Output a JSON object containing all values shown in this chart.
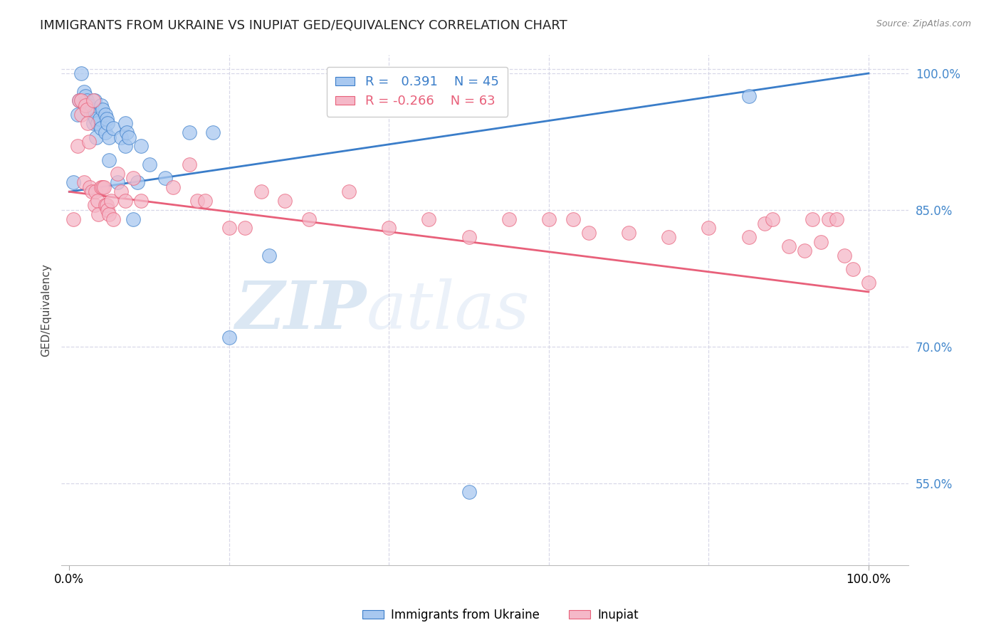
{
  "title": "IMMIGRANTS FROM UKRAINE VS INUPIAT GED/EQUIVALENCY CORRELATION CHART",
  "source": "Source: ZipAtlas.com",
  "ylabel": "GED/Equivalency",
  "legend_label1": "Immigrants from Ukraine",
  "legend_label2": "Inupiat",
  "R1": 0.391,
  "N1": 45,
  "R2": -0.266,
  "N2": 63,
  "ukraine_color": "#A8C8F0",
  "inupiat_color": "#F5B8C8",
  "ukraine_line_color": "#3A7DC9",
  "inupiat_line_color": "#E8607A",
  "watermark_zip": "ZIP",
  "watermark_atlas": "atlas",
  "ukraine_points": [
    [
      0.5,
      88.0
    ],
    [
      1.0,
      95.5
    ],
    [
      1.2,
      97.0
    ],
    [
      1.5,
      100.0
    ],
    [
      1.5,
      97.0
    ],
    [
      1.8,
      98.0
    ],
    [
      2.0,
      97.5
    ],
    [
      2.2,
      97.0
    ],
    [
      2.2,
      96.5
    ],
    [
      2.5,
      96.5
    ],
    [
      2.8,
      96.0
    ],
    [
      3.0,
      95.5
    ],
    [
      3.0,
      94.5
    ],
    [
      3.2,
      97.0
    ],
    [
      3.3,
      95.0
    ],
    [
      3.4,
      93.0
    ],
    [
      3.5,
      94.5
    ],
    [
      3.8,
      95.0
    ],
    [
      4.0,
      94.0
    ],
    [
      4.0,
      96.5
    ],
    [
      4.2,
      96.0
    ],
    [
      4.5,
      93.5
    ],
    [
      4.5,
      95.5
    ],
    [
      4.7,
      95.0
    ],
    [
      4.8,
      94.5
    ],
    [
      5.0,
      93.0
    ],
    [
      5.0,
      90.5
    ],
    [
      5.5,
      94.0
    ],
    [
      6.0,
      88.0
    ],
    [
      6.5,
      93.0
    ],
    [
      7.0,
      92.0
    ],
    [
      7.0,
      94.5
    ],
    [
      7.2,
      93.5
    ],
    [
      7.5,
      93.0
    ],
    [
      8.0,
      84.0
    ],
    [
      8.5,
      88.0
    ],
    [
      9.0,
      92.0
    ],
    [
      10.0,
      90.0
    ],
    [
      12.0,
      88.5
    ],
    [
      15.0,
      93.5
    ],
    [
      18.0,
      93.5
    ],
    [
      20.0,
      71.0
    ],
    [
      25.0,
      80.0
    ],
    [
      85.0,
      97.5
    ],
    [
      50.0,
      54.0
    ]
  ],
  "inupiat_points": [
    [
      0.5,
      84.0
    ],
    [
      1.0,
      92.0
    ],
    [
      1.2,
      97.0
    ],
    [
      1.5,
      97.0
    ],
    [
      1.5,
      95.5
    ],
    [
      1.8,
      88.0
    ],
    [
      2.0,
      96.5
    ],
    [
      2.2,
      96.0
    ],
    [
      2.3,
      94.5
    ],
    [
      2.5,
      92.5
    ],
    [
      2.6,
      87.5
    ],
    [
      2.8,
      87.0
    ],
    [
      3.0,
      97.0
    ],
    [
      3.2,
      85.5
    ],
    [
      3.3,
      87.0
    ],
    [
      3.5,
      86.0
    ],
    [
      3.6,
      84.5
    ],
    [
      4.0,
      87.5
    ],
    [
      4.2,
      87.5
    ],
    [
      4.3,
      87.5
    ],
    [
      4.5,
      85.5
    ],
    [
      4.7,
      85.5
    ],
    [
      4.8,
      85.0
    ],
    [
      5.0,
      84.5
    ],
    [
      5.2,
      86.0
    ],
    [
      5.5,
      84.0
    ],
    [
      6.0,
      89.0
    ],
    [
      6.5,
      87.0
    ],
    [
      7.0,
      86.0
    ],
    [
      8.0,
      88.5
    ],
    [
      9.0,
      86.0
    ],
    [
      13.0,
      87.5
    ],
    [
      15.0,
      90.0
    ],
    [
      16.0,
      86.0
    ],
    [
      17.0,
      86.0
    ],
    [
      20.0,
      83.0
    ],
    [
      22.0,
      83.0
    ],
    [
      24.0,
      87.0
    ],
    [
      27.0,
      86.0
    ],
    [
      30.0,
      84.0
    ],
    [
      35.0,
      87.0
    ],
    [
      40.0,
      83.0
    ],
    [
      45.0,
      84.0
    ],
    [
      50.0,
      82.0
    ],
    [
      55.0,
      84.0
    ],
    [
      60.0,
      84.0
    ],
    [
      63.0,
      84.0
    ],
    [
      65.0,
      82.5
    ],
    [
      70.0,
      82.5
    ],
    [
      75.0,
      82.0
    ],
    [
      80.0,
      83.0
    ],
    [
      85.0,
      82.0
    ],
    [
      87.0,
      83.5
    ],
    [
      88.0,
      84.0
    ],
    [
      90.0,
      81.0
    ],
    [
      92.0,
      80.5
    ],
    [
      93.0,
      84.0
    ],
    [
      94.0,
      81.5
    ],
    [
      95.0,
      84.0
    ],
    [
      96.0,
      84.0
    ],
    [
      97.0,
      80.0
    ],
    [
      98.0,
      78.5
    ],
    [
      100.0,
      77.0
    ]
  ],
  "ylim_bottom": 46.0,
  "ylim_top": 102.0,
  "xlim_left": -1.0,
  "xlim_right": 105.0,
  "yticks": [
    55.0,
    70.0,
    85.0,
    100.0
  ],
  "ytick_labels": [
    "55.0%",
    "70.0%",
    "85.0%",
    "100.0%"
  ],
  "xtick_positions": [
    0.0,
    100.0
  ],
  "xtick_labels": [
    "0.0%",
    "100.0%"
  ],
  "xgrid_positions": [
    20.0,
    40.0,
    60.0,
    80.0,
    100.0
  ],
  "background_color": "#ffffff",
  "grid_color": "#d8d8e8"
}
